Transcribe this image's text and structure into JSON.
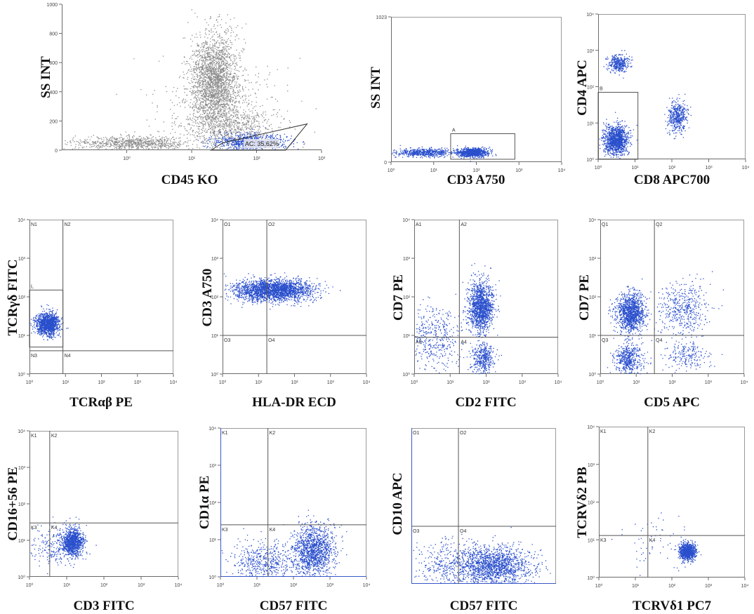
{
  "colors": {
    "event": "#2a4fcc",
    "gray_event": "#8c8c8c",
    "axis": "#6a6a6a",
    "gate": "#555555",
    "gate_blue": "#3858c8"
  },
  "chart_data": [
    {
      "id": "p1",
      "type": "scatter",
      "title": "",
      "xlabel": "CD45 KO",
      "ylabel": "SS INT",
      "xscale": "log",
      "xlim": [
        0.1,
        1000
      ],
      "ylim": [
        0,
        1000
      ],
      "xticks": [
        "10⁰",
        "10¹",
        "10²",
        "10³"
      ],
      "xtick_values": [
        1,
        10,
        100,
        1000
      ],
      "yticks": [
        "0",
        "200",
        "400",
        "600",
        "800",
        "1000"
      ],
      "ytick_values": [
        0,
        200,
        400,
        600,
        800,
        1000
      ],
      "gates": [
        {
          "label": "AC: 35.62%",
          "shape": "polygon",
          "x": [
            20,
            280,
            600,
            30
          ],
          "y": [
            0,
            0,
            180,
            50
          ],
          "color": "blue"
        }
      ],
      "clusters": [
        {
          "name": "granulocytes",
          "x": 22,
          "y": 480,
          "sx": 0.18,
          "sy": 160,
          "n": 2200,
          "color": "gray"
        },
        {
          "name": "granulocyte tail",
          "x": 40,
          "y": 170,
          "sx": 0.3,
          "sy": 60,
          "n": 500,
          "color": "gray"
        },
        {
          "name": "debris",
          "x": 1.2,
          "y": 50,
          "sx": 0.45,
          "sy": 25,
          "n": 800,
          "color": "gray"
        },
        {
          "name": "scatter halo",
          "x": 25,
          "y": 250,
          "sx": 0.5,
          "sy": 180,
          "n": 600,
          "color": "gray"
        },
        {
          "name": "AC gate events",
          "x": 80,
          "y": 60,
          "sx": 0.3,
          "sy": 28,
          "n": 700,
          "color": "blue"
        }
      ]
    },
    {
      "id": "p2",
      "type": "scatter",
      "title": "",
      "xlabel": "CD3 A750",
      "ylabel": "SS INT",
      "xscale": "log",
      "xlim": [
        1,
        10000
      ],
      "ylim": [
        0,
        1023
      ],
      "xticks": [
        "10⁰",
        "10¹",
        "10²",
        "10³",
        "10⁴"
      ],
      "xtick_values": [
        1,
        10,
        100,
        1000,
        10000
      ],
      "yticks": [
        "0",
        "1023"
      ],
      "ytick_values": [
        0,
        1023
      ],
      "gates": [
        {
          "label": "A",
          "shape": "rect",
          "x": [
            25,
            800
          ],
          "y": [
            20,
            200
          ],
          "color": "gray"
        }
      ],
      "clusters": [
        {
          "name": "CD3-dim band",
          "x": 6,
          "y": 70,
          "sx": 0.35,
          "sy": 15,
          "n": 550,
          "color": "blue"
        },
        {
          "name": "CD3+ population",
          "x": 80,
          "y": 70,
          "sx": 0.17,
          "sy": 15,
          "n": 900,
          "color": "blue"
        }
      ]
    },
    {
      "id": "p3",
      "type": "scatter",
      "title": "",
      "xlabel": "CD8 APC700",
      "ylabel": "CD4 APC",
      "xscale": "log",
      "yscale": "log",
      "xlim": [
        1,
        10000
      ],
      "ylim": [
        1,
        10000
      ],
      "xticks": [
        "10⁰",
        "10¹",
        "10²",
        "10³",
        "10⁴"
      ],
      "xtick_values": [
        1,
        10,
        100,
        1000,
        10000
      ],
      "yticks": [
        "10⁰",
        "10¹",
        "10²",
        "10³",
        "10⁴"
      ],
      "ytick_values": [
        1,
        10,
        100,
        1000,
        10000
      ],
      "gates": [
        {
          "label": "B",
          "shape": "rect",
          "x": [
            1,
            12
          ],
          "y": [
            1,
            70
          ],
          "color": "gray"
        }
      ],
      "clusters": [
        {
          "name": "CD4+",
          "x": 3.5,
          "y": 450,
          "sx": 0.14,
          "sy": 0.12,
          "n": 350,
          "color": "blue"
        },
        {
          "name": "CD4-CD8- gate B",
          "x": 3,
          "y": 3.5,
          "sx": 0.16,
          "sy": 0.2,
          "n": 1200,
          "color": "blue"
        },
        {
          "name": "CD8+",
          "x": 140,
          "y": 15,
          "sx": 0.13,
          "sy": 0.22,
          "n": 450,
          "color": "blue"
        }
      ]
    },
    {
      "id": "p4",
      "type": "scatter",
      "title": "",
      "xlabel": "TCRαβ PE",
      "ylabel": "TCRγδ FITC",
      "xscale": "log",
      "yscale": "log",
      "xlim": [
        1,
        10000
      ],
      "ylim": [
        1,
        10000
      ],
      "xticks": [
        "10⁰",
        "10¹",
        "10²",
        "10³",
        "10⁴"
      ],
      "xtick_values": [
        1,
        10,
        100,
        1000,
        10000
      ],
      "yticks": [
        "10⁰",
        "10¹",
        "10²",
        "10³",
        "10⁴"
      ],
      "ytick_values": [
        1,
        10,
        100,
        1000,
        10000
      ],
      "quadrants": {
        "x": 8.5,
        "y": 4,
        "labels": [
          "N1",
          "N2",
          "N3",
          "N4"
        ]
      },
      "gates": [
        {
          "label": "L",
          "shape": "rect",
          "x": [
            1,
            8.5
          ],
          "y": [
            5,
            150
          ],
          "color": "gray"
        }
      ],
      "clusters": [
        {
          "name": "TCRγδ+ TCRαβ-",
          "x": 3.2,
          "y": 20,
          "sx": 0.16,
          "sy": 0.15,
          "n": 1300,
          "color": "blue"
        }
      ]
    },
    {
      "id": "p5",
      "type": "scatter",
      "title": "",
      "xlabel": "HLA-DR ECD",
      "ylabel": "CD3 A750",
      "xscale": "log",
      "yscale": "log",
      "xlim": [
        1,
        10000
      ],
      "ylim": [
        1,
        10000
      ],
      "xticks": [
        "10⁰",
        "10¹",
        "10²",
        "10³",
        "10⁴"
      ],
      "xtick_values": [
        1,
        10,
        100,
        1000,
        10000
      ],
      "yticks": [
        "10⁰",
        "10¹",
        "10²",
        "10³",
        "10⁴"
      ],
      "ytick_values": [
        1,
        10,
        100,
        1000,
        10000
      ],
      "quadrants": {
        "x": 17,
        "y": 10,
        "labels": [
          "O1",
          "O2",
          "O3",
          "O4"
        ]
      },
      "clusters": [
        {
          "name": "CD3+ HLA-DR spread",
          "x": 25,
          "y": 150,
          "sx": 0.55,
          "sy": 0.14,
          "n": 2300,
          "color": "blue"
        }
      ]
    },
    {
      "id": "p6",
      "type": "scatter",
      "title": "",
      "xlabel": "CD2 FITC",
      "ylabel": "CD7 PE",
      "xscale": "log",
      "yscale": "log",
      "xlim": [
        1,
        10000
      ],
      "ylim": [
        1,
        10000
      ],
      "xticks": [
        "10⁰",
        "10¹",
        "10²",
        "10³",
        "10⁴"
      ],
      "xtick_values": [
        1,
        10,
        100,
        1000,
        10000
      ],
      "yticks": [
        "10⁰",
        "10¹",
        "10²",
        "10³",
        "10⁴"
      ],
      "ytick_values": [
        1,
        10,
        100,
        1000,
        10000
      ],
      "quadrants": {
        "x": 18,
        "y": 9,
        "labels": [
          "A1",
          "A2",
          "A3",
          "A4"
        ]
      },
      "clusters": [
        {
          "name": "CD2+ CD7+",
          "x": 70,
          "y": 55,
          "sx": 0.17,
          "sy": 0.32,
          "n": 1400,
          "color": "blue"
        },
        {
          "name": "CD2+ CD7-",
          "x": 80,
          "y": 2.5,
          "sx": 0.16,
          "sy": 0.2,
          "n": 400,
          "color": "blue"
        },
        {
          "name": "CD2- scatter",
          "x": 3.5,
          "y": 8,
          "sx": 0.4,
          "sy": 0.45,
          "n": 450,
          "color": "blue"
        }
      ]
    },
    {
      "id": "p7",
      "type": "scatter",
      "title": "",
      "xlabel": "CD5 APC",
      "ylabel": "CD7 PE",
      "xscale": "log",
      "yscale": "log",
      "xlim": [
        1,
        10000
      ],
      "ylim": [
        1,
        10000
      ],
      "xticks": [
        "10⁰",
        "10¹",
        "10²",
        "10³",
        "10⁴"
      ],
      "xtick_values": [
        1,
        10,
        100,
        1000,
        10000
      ],
      "yticks": [
        "10⁰",
        "10¹",
        "10²",
        "10³",
        "10⁴"
      ],
      "ytick_values": [
        1,
        10,
        100,
        1000,
        10000
      ],
      "quadrants": {
        "x": 32,
        "y": 10,
        "labels": [
          "Q1",
          "Q2",
          "Q3",
          "Q4"
        ]
      },
      "clusters": [
        {
          "name": "CD5- CD7+",
          "x": 7,
          "y": 40,
          "sx": 0.2,
          "sy": 0.25,
          "n": 1200,
          "color": "blue"
        },
        {
          "name": "CD5- CD7-",
          "x": 6,
          "y": 2.5,
          "sx": 0.2,
          "sy": 0.22,
          "n": 500,
          "color": "blue"
        },
        {
          "name": "CD5+ CD7+",
          "x": 200,
          "y": 50,
          "sx": 0.35,
          "sy": 0.35,
          "n": 450,
          "color": "blue"
        },
        {
          "name": "CD5+ CD7-",
          "x": 250,
          "y": 3,
          "sx": 0.3,
          "sy": 0.2,
          "n": 200,
          "color": "blue"
        }
      ]
    },
    {
      "id": "p8",
      "type": "scatter",
      "title": "",
      "xlabel": "CD3 FITC",
      "ylabel": "CD16+56 PE",
      "xscale": "log",
      "yscale": "log",
      "xlim": [
        1,
        10000
      ],
      "ylim": [
        1,
        10000
      ],
      "xticks": [
        "10⁰",
        "10¹",
        "10²",
        "10³",
        "10⁴"
      ],
      "xtick_values": [
        1,
        10,
        100,
        1000,
        10000
      ],
      "yticks": [
        "10⁰",
        "10¹",
        "10²",
        "10³",
        "10⁴"
      ],
      "ytick_values": [
        1,
        10,
        100,
        1000,
        10000
      ],
      "quadrants": {
        "x": 3.5,
        "y": 30,
        "labels": [
          "K1",
          "K2",
          "K3",
          "K4"
        ]
      },
      "clusters": [
        {
          "name": "CD3+ CD16/56-",
          "x": 14,
          "y": 9,
          "sx": 0.14,
          "sy": 0.18,
          "n": 1000,
          "color": "blue"
        },
        {
          "name": "CD3 scatter",
          "x": 5,
          "y": 7,
          "sx": 0.35,
          "sy": 0.3,
          "n": 250,
          "color": "blue"
        }
      ]
    },
    {
      "id": "p9",
      "type": "scatter",
      "title": "",
      "xlabel": "CD57 FITC",
      "ylabel": "CD1α PE",
      "xscale": "log",
      "yscale": "log",
      "xlim": [
        1,
        10000
      ],
      "ylim": [
        1,
        10000
      ],
      "xticks": [
        "10⁰",
        "10¹",
        "10²",
        "10³",
        "10⁴"
      ],
      "xtick_values": [
        1,
        10,
        100,
        1000,
        10000
      ],
      "yticks": [
        "10⁰",
        "10¹",
        "10²",
        "10³",
        "10⁴"
      ],
      "ytick_values": [
        1,
        10,
        100,
        1000,
        10000
      ],
      "quadrants": {
        "x": 20,
        "y": 25,
        "labels": [
          "K1",
          "K2",
          "K3",
          "K4"
        ]
      },
      "clusters": [
        {
          "name": "CD57+ diagonal",
          "x": 350,
          "y": 5,
          "sx": 0.28,
          "sy": 0.35,
          "n": 1300,
          "color": "blue"
        },
        {
          "name": "CD57 low scatter",
          "x": 15,
          "y": 2.5,
          "sx": 0.45,
          "sy": 0.3,
          "n": 500,
          "color": "blue"
        }
      ]
    },
    {
      "id": "p10",
      "type": "scatter",
      "title": "",
      "xlabel": "CD57 FITC",
      "ylabel": "CD10 APC",
      "xscale": "log",
      "yscale": "log",
      "xlim": [
        1,
        10000
      ],
      "ylim": [
        1,
        10000
      ],
      "xticks": [],
      "xtick_values": [],
      "yticks": [],
      "ytick_values": [],
      "quadrants": {
        "x": 20,
        "y": 30,
        "labels": [
          "O1",
          "O2",
          "O3",
          "O4"
        ]
      },
      "clusters": [
        {
          "name": "CD10- spread",
          "x": 200,
          "y": 3,
          "sx": 0.5,
          "sy": 0.25,
          "n": 1500,
          "color": "blue"
        },
        {
          "name": "low scatter",
          "x": 10,
          "y": 3,
          "sx": 0.45,
          "sy": 0.3,
          "n": 350,
          "color": "blue"
        }
      ]
    },
    {
      "id": "p11",
      "type": "scatter",
      "title": "",
      "xlabel": "TCRVδ1 PC7",
      "ylabel": "TCRVδ2 PB",
      "xscale": "log",
      "yscale": "log",
      "xlim": [
        1,
        10000
      ],
      "ylim": [
        1,
        10000
      ],
      "xticks": [
        "10⁰",
        "10¹",
        "10²",
        "10³",
        "10⁴"
      ],
      "xtick_values": [
        1,
        10,
        100,
        1000,
        10000
      ],
      "yticks": [
        "10⁰",
        "10¹",
        "10²",
        "10³",
        "10⁴"
      ],
      "ytick_values": [
        1,
        10,
        100,
        1000,
        10000
      ],
      "quadrants": {
        "x": 22,
        "y": 13,
        "labels": [
          "K1",
          "K2",
          "K3",
          "K4"
        ]
      },
      "clusters": [
        {
          "name": "TCRVδ1+ TCRVδ2-",
          "x": 260,
          "y": 5,
          "sx": 0.11,
          "sy": 0.11,
          "n": 900,
          "color": "blue"
        },
        {
          "name": "sparse",
          "x": 40,
          "y": 8,
          "sx": 0.45,
          "sy": 0.4,
          "n": 60,
          "color": "blue"
        }
      ]
    }
  ]
}
